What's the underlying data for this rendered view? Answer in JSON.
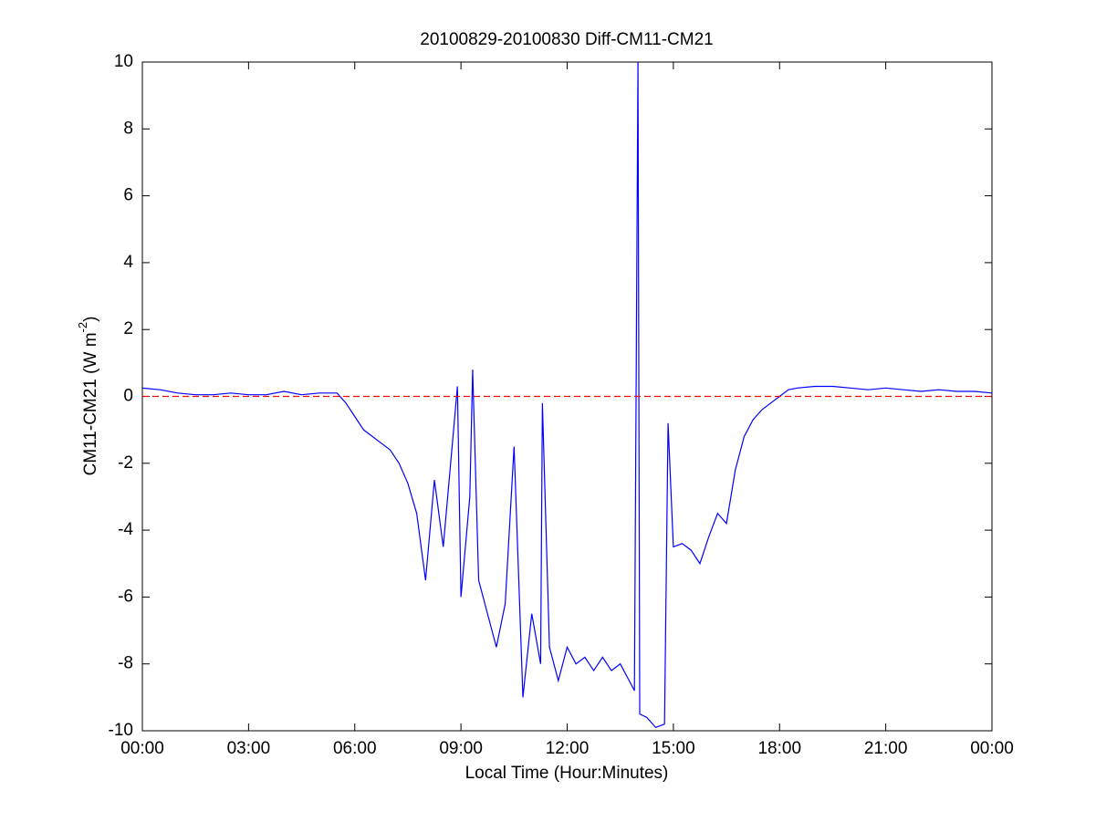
{
  "chart_data": {
    "type": "line",
    "title": "20100829-20100830 Diff-CM11-CM21",
    "xlabel": "Local Time (Hour:Minutes)",
    "ylabel_parts": [
      "CM11-CM21 (W m",
      "-2",
      ")"
    ],
    "xlim": [
      0,
      24
    ],
    "xticks": [
      {
        "value": 0,
        "label": "00:00"
      },
      {
        "value": 3,
        "label": "03:00"
      },
      {
        "value": 6,
        "label": "06:00"
      },
      {
        "value": 9,
        "label": "09:00"
      },
      {
        "value": 12,
        "label": "12:00"
      },
      {
        "value": 15,
        "label": "15:00"
      },
      {
        "value": 18,
        "label": "18:00"
      },
      {
        "value": 21,
        "label": "21:00"
      },
      {
        "value": 24,
        "label": "00:00"
      }
    ],
    "ylim": [
      -10,
      10
    ],
    "yticks": [
      -10,
      -8,
      -6,
      -4,
      -2,
      0,
      2,
      4,
      6,
      8,
      10
    ],
    "grid": false,
    "reference_line": {
      "value": 0,
      "color": "#ff0000",
      "style": "dashed"
    },
    "x": [
      0,
      0.5,
      1,
      1.5,
      2,
      2.5,
      3,
      3.5,
      4,
      4.5,
      5,
      5.5,
      5.75,
      6,
      6.25,
      6.5,
      6.75,
      7,
      7.25,
      7.5,
      7.75,
      8,
      8.25,
      8.5,
      8.75,
      8.9,
      9.0,
      9.25,
      9.33,
      9.5,
      9.75,
      10,
      10.25,
      10.5,
      10.75,
      11,
      11.25,
      11.3,
      11.5,
      11.75,
      12,
      12.25,
      12.5,
      12.75,
      13,
      13.25,
      13.5,
      13.75,
      13.9,
      14.0,
      14.05,
      14.25,
      14.5,
      14.75,
      14.85,
      15,
      15.25,
      15.5,
      15.75,
      16,
      16.25,
      16.5,
      16.75,
      17,
      17.25,
      17.5,
      17.75,
      18,
      18.25,
      18.5,
      19,
      19.5,
      20,
      20.5,
      21,
      21.5,
      22,
      22.5,
      23,
      23.5,
      24
    ],
    "series": [
      {
        "color": "#0000ff",
        "values": [
          0.25,
          0.2,
          0.1,
          0.05,
          0.05,
          0.1,
          0.05,
          0.05,
          0.15,
          0.05,
          0.1,
          0.1,
          -0.2,
          -0.6,
          -1.0,
          -1.2,
          -1.4,
          -1.6,
          -2.0,
          -2.6,
          -3.5,
          -5.5,
          -2.5,
          -4.5,
          -1.5,
          0.3,
          -6,
          -3,
          0.8,
          -5.5,
          -6.5,
          -7.5,
          -6.2,
          -1.5,
          -9,
          -6.5,
          -8,
          -0.2,
          -7.5,
          -8.5,
          -7.5,
          -8,
          -7.8,
          -8.2,
          -7.8,
          -8.2,
          -8,
          -8.5,
          -8.8,
          10,
          -9.5,
          -9.6,
          -9.9,
          -9.8,
          -0.8,
          -4.5,
          -4.4,
          -4.6,
          -5,
          -4.2,
          -3.5,
          -3.8,
          -2.2,
          -1.2,
          -0.7,
          -0.4,
          -0.2,
          0.0,
          0.2,
          0.25,
          0.3,
          0.3,
          0.25,
          0.2,
          0.25,
          0.2,
          0.15,
          0.2,
          0.15,
          0.15,
          0.1
        ]
      }
    ]
  }
}
